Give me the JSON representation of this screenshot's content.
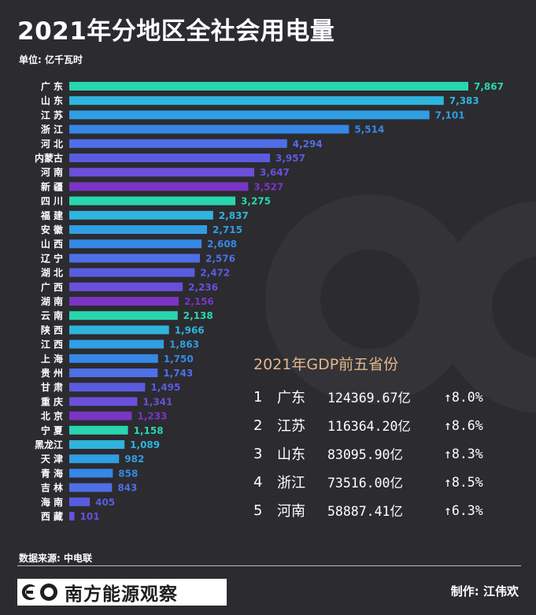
{
  "header": {
    "title": "2021年分地区全社会用电量",
    "unit": "单位: 亿千瓦时"
  },
  "chart_data": {
    "type": "bar",
    "orientation": "horizontal",
    "title": "2021年分地区全社会用电量",
    "unit": "亿千瓦时",
    "categories": [
      "广 东",
      "山 东",
      "江 苏",
      "浙 江",
      "河 北",
      "内蒙古",
      "河 南",
      "新 疆",
      "四 川",
      "福 建",
      "安 徽",
      "山 西",
      "辽 宁",
      "湖 北",
      "广 西",
      "湖 南",
      "云 南",
      "陕 西",
      "江 西",
      "上 海",
      "贵 州",
      "甘 肃",
      "重 庆",
      "北 京",
      "宁 夏",
      "黑龙江",
      "天 津",
      "青 海",
      "吉 林",
      "海 南",
      "西 藏"
    ],
    "values": [
      7867,
      7383,
      7101,
      5514,
      4294,
      3957,
      3647,
      3527,
      3275,
      2837,
      2715,
      2608,
      2576,
      2472,
      2236,
      2156,
      2138,
      1966,
      1863,
      1750,
      1743,
      1495,
      1341,
      1233,
      1158,
      1089,
      982,
      858,
      843,
      405,
      101
    ],
    "value_labels": [
      "7,867",
      "7,383",
      "7,101",
      "5,514",
      "4,294",
      "3,957",
      "3,647",
      "3,527",
      "3,275",
      "2,837",
      "2,715",
      "2,608",
      "2,576",
      "2,472",
      "2,236",
      "2,156",
      "2,138",
      "1,966",
      "1,863",
      "1,750",
      "1,743",
      "1,495",
      "1,341",
      "1,233",
      "1,158",
      "1,089",
      "982",
      "858",
      "843",
      "405",
      "101"
    ],
    "bar_colors": [
      "#29d6b0",
      "#2fb4dd",
      "#2f9ee2",
      "#3588e6",
      "#4f6fe6",
      "#5a5ce0",
      "#6a4fdb",
      "#7a35c4",
      "#29d6b0",
      "#2fb4dd",
      "#2f9ee2",
      "#3588e6",
      "#4f6fe6",
      "#5a5ce0",
      "#6a4fdb",
      "#7a35c4",
      "#29d6b0",
      "#2fb4dd",
      "#2f9ee2",
      "#3588e6",
      "#4f6fe6",
      "#5a5ce0",
      "#6a4fdb",
      "#7a35c4",
      "#29d6b0",
      "#2fb4dd",
      "#2f9ee2",
      "#3588e6",
      "#4f6fe6",
      "#5a5ce0",
      "#6a4fdb"
    ],
    "label_colors": [
      "#29d6b0",
      "#2fb4dd",
      "#2f9ee2",
      "#3588e6",
      "#4f6fe6",
      "#5a5ce0",
      "#6a4fdb",
      "#7a35c4",
      "#29d6b0",
      "#2fb4dd",
      "#2f9ee2",
      "#3588e6",
      "#4f6fe6",
      "#5a5ce0",
      "#6a4fdb",
      "#7a35c4",
      "#29d6b0",
      "#2fb4dd",
      "#2f9ee2",
      "#3588e6",
      "#4f6fe6",
      "#5a5ce0",
      "#6a4fdb",
      "#7a35c4",
      "#29d6b0",
      "#2fb4dd",
      "#2f9ee2",
      "#3588e6",
      "#4f6fe6",
      "#5a5ce0",
      "#6a4fdb"
    ],
    "xlim": [
      0,
      7867
    ],
    "grid": false,
    "legend": "none"
  },
  "gdp_panel": {
    "title": "2021年GDP前五省份",
    "rows": [
      {
        "rank": "1",
        "province": "广东",
        "gdp": "124369.67亿",
        "growth": "↑8.0%"
      },
      {
        "rank": "2",
        "province": "江苏",
        "gdp": "116364.20亿",
        "growth": "↑8.6%"
      },
      {
        "rank": "3",
        "province": "山东",
        "gdp": "83095.90亿",
        "growth": "↑8.3%"
      },
      {
        "rank": "4",
        "province": "浙江",
        "gdp": "73516.00亿",
        "growth": "↑8.5%"
      },
      {
        "rank": "5",
        "province": "河南",
        "gdp": "58887.41亿",
        "growth": "↑6.3%"
      }
    ]
  },
  "footer": {
    "source": "数据来源: 中电联",
    "brand": "南方能源观察",
    "author": "制作: 江伟欢"
  },
  "colors": {
    "background": "#2c2b30",
    "accent_gold": "#e2b68b",
    "watermark": "#343338"
  }
}
